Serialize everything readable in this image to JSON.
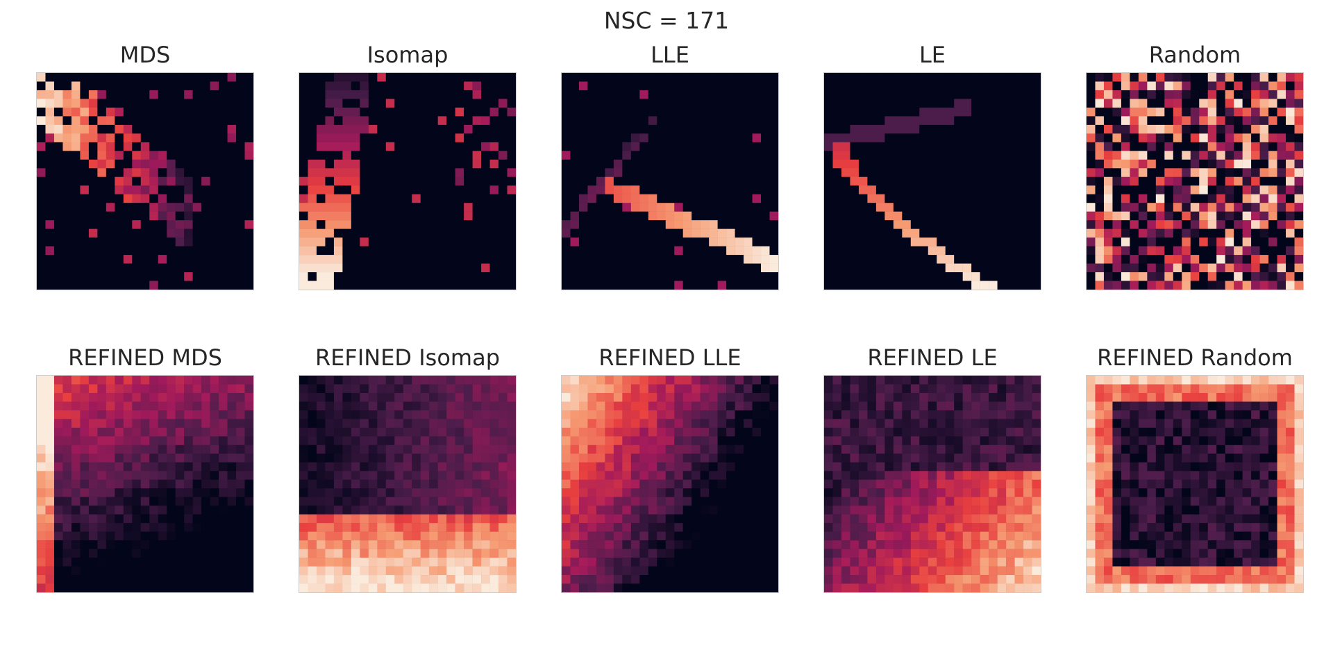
{
  "figure": {
    "suptitle": "NSC = 171"
  },
  "chart_data": [
    {
      "type": "heatmap",
      "title": "MDS",
      "grid_size": 25,
      "colormap": "rocket",
      "colors": [
        "#03051a",
        "#4c1d4b",
        "#a11a5b",
        "#e83f3f",
        "#f69c73",
        "#faebdd"
      ],
      "pattern": "diagonal-cluster-top-left"
    },
    {
      "type": "heatmap",
      "title": "Isomap",
      "grid_size": 25,
      "colormap": "rocket",
      "colors": [
        "#03051a",
        "#4c1d4b",
        "#a11a5b",
        "#e83f3f",
        "#f69c73",
        "#faebdd"
      ],
      "pattern": "vertical-band-left"
    },
    {
      "type": "heatmap",
      "title": "LLE",
      "grid_size": 25,
      "colormap": "rocket",
      "colors": [
        "#03051a",
        "#4c1d4b",
        "#a11a5b",
        "#e83f3f",
        "#f69c73",
        "#faebdd"
      ],
      "pattern": "v-shape-lines"
    },
    {
      "type": "heatmap",
      "title": "LE",
      "grid_size": 25,
      "colormap": "rocket",
      "colors": [
        "#03051a",
        "#4c1d4b",
        "#a11a5b",
        "#e83f3f",
        "#f69c73",
        "#faebdd"
      ],
      "pattern": "curved-arc"
    },
    {
      "type": "heatmap",
      "title": "Random",
      "grid_size": 25,
      "colormap": "rocket",
      "colors": [
        "#03051a",
        "#4c1d4b",
        "#a11a5b",
        "#e83f3f",
        "#f69c73",
        "#faebdd"
      ],
      "pattern": "random"
    },
    {
      "type": "heatmap",
      "title": "REFINED MDS",
      "grid_size": 25,
      "colormap": "rocket",
      "colors": [
        "#03051a",
        "#4c1d4b",
        "#a11a5b",
        "#e83f3f",
        "#f69c73",
        "#faebdd"
      ],
      "pattern": "bright-top-left-corner"
    },
    {
      "type": "heatmap",
      "title": "REFINED Isomap",
      "grid_size": 25,
      "colormap": "rocket",
      "colors": [
        "#03051a",
        "#4c1d4b",
        "#a11a5b",
        "#e83f3f",
        "#f69c73",
        "#faebdd"
      ],
      "pattern": "bright-bottom-band"
    },
    {
      "type": "heatmap",
      "title": "REFINED LLE",
      "grid_size": 25,
      "colormap": "rocket",
      "colors": [
        "#03051a",
        "#4c1d4b",
        "#a11a5b",
        "#e83f3f",
        "#f69c73",
        "#faebdd"
      ],
      "pattern": "bright-top-left-triangle"
    },
    {
      "type": "heatmap",
      "title": "REFINED LE",
      "grid_size": 25,
      "colormap": "rocket",
      "colors": [
        "#03051a",
        "#4c1d4b",
        "#a11a5b",
        "#e83f3f",
        "#f69c73",
        "#faebdd"
      ],
      "pattern": "bright-bottom-right"
    },
    {
      "type": "heatmap",
      "title": "REFINED Random",
      "grid_size": 25,
      "colormap": "rocket",
      "colors": [
        "#03051a",
        "#4c1d4b",
        "#a11a5b",
        "#e83f3f",
        "#f69c73",
        "#faebdd"
      ],
      "pattern": "bright-border-frame"
    }
  ]
}
